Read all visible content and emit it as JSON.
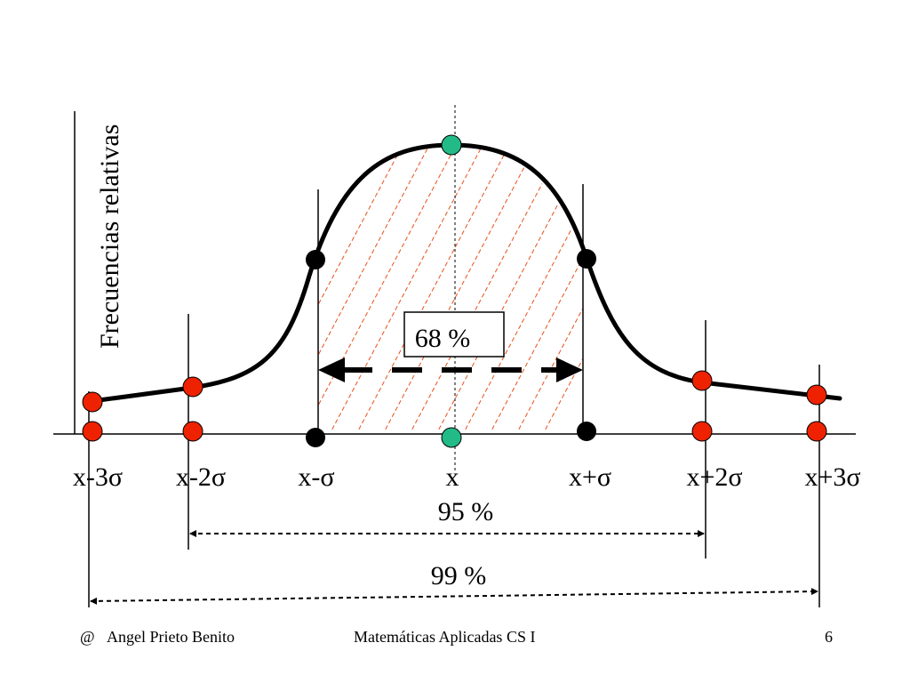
{
  "y_axis_label": "Frecuencias relativas",
  "x_labels": [
    "x-3σ",
    "x-2σ",
    "x-σ",
    "x",
    "x+σ",
    "x+2σ",
    "x+3σ"
  ],
  "annotations": {
    "pct_68": "68 %",
    "pct_95": "95 %",
    "pct_99": "99 %"
  },
  "colors": {
    "curve": "#000000",
    "red_point": "#ee2200",
    "black_point": "#000000",
    "green_point": "#22bb88",
    "hatch": "#e8501a"
  },
  "footer": {
    "symbol": "@",
    "author": "Angel Prieto Benito",
    "course": "Matemáticas Aplicadas CS I",
    "page": "6"
  }
}
